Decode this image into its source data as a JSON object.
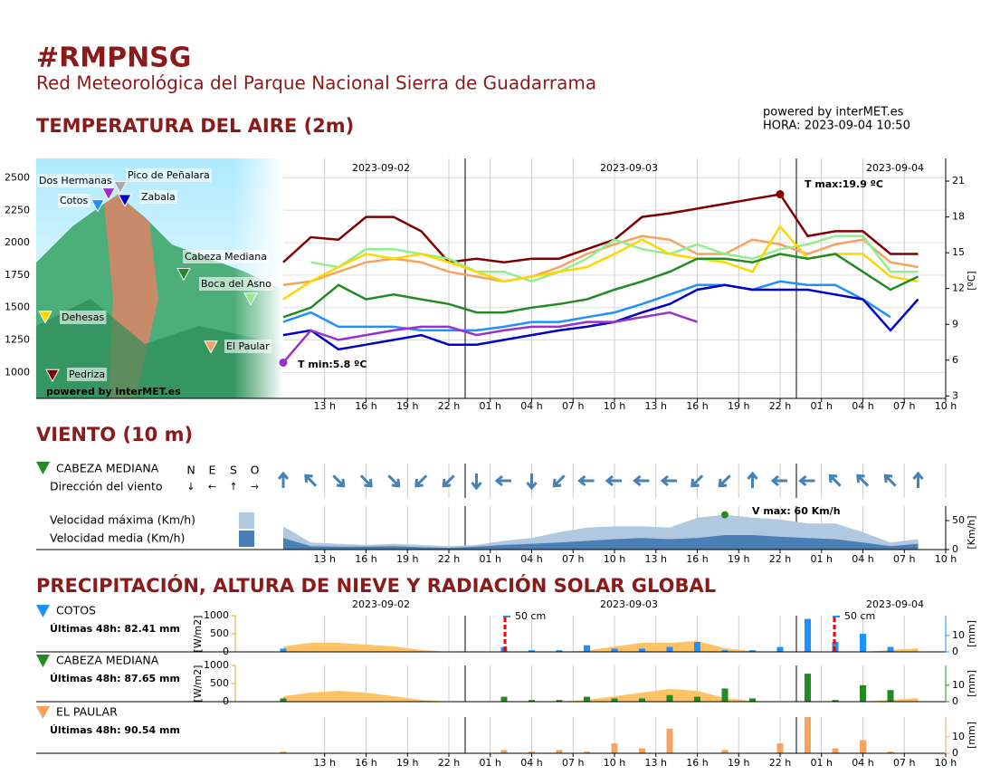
{
  "header": {
    "title": "#RMPNSG",
    "subtitle": "Red Meteorológica del Parque Nacional Sierra de Guadarrama",
    "powered": "powered by interMET.es",
    "hora": "HORA: 2023-09-04 10:50"
  },
  "time_axis": {
    "xlim": [
      10,
      58
    ],
    "dates": [
      "2023-09-02",
      "2023-09-03",
      "2023-09-04"
    ],
    "xticks": [
      {
        "value": 13,
        "label": "13 h"
      },
      {
        "value": 16,
        "label": "16 h"
      },
      {
        "value": 19,
        "label": "19 h"
      },
      {
        "value": 22,
        "label": "22 h"
      },
      {
        "value": 25,
        "label": "01 h"
      },
      {
        "value": 28,
        "label": "04 h"
      },
      {
        "value": 31,
        "label": "07 h"
      },
      {
        "value": 34,
        "label": "10 h"
      },
      {
        "value": 37,
        "label": "13 h"
      },
      {
        "value": 40,
        "label": "16 h"
      },
      {
        "value": 43,
        "label": "19 h"
      },
      {
        "value": 46,
        "label": "22 h"
      },
      {
        "value": 49,
        "label": "01 h"
      },
      {
        "value": 52,
        "label": "04 h"
      },
      {
        "value": 55,
        "label": "07 h"
      },
      {
        "value": 58,
        "label": "10 h"
      }
    ],
    "x": [
      10,
      12,
      14,
      16,
      18,
      20,
      22,
      24,
      26,
      28,
      30,
      32,
      34,
      36,
      38,
      40,
      42,
      44,
      46,
      48,
      50,
      52,
      54,
      56
    ]
  },
  "temperature": {
    "title": "TEMPERATURA DEL AIRE (2m)",
    "map_credit": "powered by interMET.es",
    "alt_ylim": [
      800,
      2650
    ],
    "alt_yticks": [
      1000,
      1250,
      1500,
      1750,
      2000,
      2250,
      2500
    ],
    "ylim": [
      2.8,
      22.9
    ],
    "yticks": [
      3,
      6,
      9,
      12,
      15,
      18,
      21
    ],
    "ylabel": "[ºC]",
    "tmax_label": "T max:19.9 ºC",
    "tmin_label": "T min:5.8 ºC",
    "stations": [
      {
        "name": "Pedriza",
        "color": "#800000",
        "altitude": 980,
        "temps": [
          14.2,
          16.3,
          16.1,
          18.0,
          18.0,
          16.8,
          14.2,
          14.5,
          14.2,
          14.5,
          14.5,
          15.3,
          16.1,
          18.0,
          18.3,
          18.7,
          19.1,
          19.5,
          19.9,
          16.4,
          16.8,
          16.8,
          14.9,
          14.9
        ]
      },
      {
        "name": "El Paular",
        "color": "#f4a460",
        "altitude": 1200,
        "temps": [
          12.3,
          12.6,
          13.4,
          14.2,
          14.5,
          14.2,
          13.4,
          13.0,
          12.6,
          13.0,
          13.8,
          14.9,
          15.7,
          16.4,
          16.1,
          14.9,
          14.9,
          16.1,
          15.7,
          14.9,
          15.7,
          16.1,
          14.2,
          13.8
        ]
      },
      {
        "name": "Boca del Asno",
        "color": "#90ee90",
        "altitude": 1570,
        "temps": [
          null,
          14.2,
          13.8,
          15.3,
          15.3,
          14.9,
          14.5,
          13.4,
          13.4,
          12.6,
          13.4,
          14.5,
          16.1,
          15.3,
          14.9,
          15.7,
          14.9,
          14.5,
          15.3,
          15.7,
          16.4,
          16.4,
          13.4,
          13.4
        ]
      },
      {
        "name": "Dehesas",
        "color": "#ffd700",
        "altitude": 1430,
        "temps": [
          11.1,
          12.6,
          13.8,
          14.9,
          14.5,
          14.9,
          14.2,
          13.4,
          12.6,
          13.0,
          13.4,
          13.8,
          14.9,
          16.1,
          14.9,
          14.5,
          14.2,
          13.4,
          17.2,
          14.5,
          14.9,
          14.9,
          13.0,
          12.6
        ]
      },
      {
        "name": "Cabeza Mediana",
        "color": "#228b22",
        "altitude": 1760,
        "temps": [
          9.6,
          10.4,
          12.3,
          11.1,
          11.5,
          11.1,
          10.7,
          10.0,
          10.0,
          10.4,
          10.7,
          11.1,
          11.9,
          12.6,
          13.4,
          14.5,
          14.5,
          14.2,
          14.9,
          14.5,
          14.9,
          13.4,
          11.9,
          13.0
        ]
      },
      {
        "name": "Cotos",
        "color": "#1e90ff",
        "altitude": 2290,
        "temps": [
          9.2,
          10.0,
          8.8,
          8.8,
          8.8,
          8.5,
          8.5,
          8.5,
          8.8,
          9.2,
          9.2,
          9.6,
          10.0,
          10.7,
          11.5,
          12.3,
          12.3,
          11.9,
          12.6,
          12.3,
          12.3,
          11.1,
          9.6,
          null
        ]
      },
      {
        "name": "Zabala",
        "color": "#0000cd",
        "altitude": 2330,
        "temps": [
          8.1,
          8.5,
          6.9,
          7.3,
          7.7,
          8.1,
          7.3,
          7.3,
          7.7,
          8.1,
          8.5,
          8.8,
          9.2,
          10.0,
          10.7,
          11.9,
          12.3,
          11.9,
          11.9,
          11.9,
          11.5,
          11.1,
          8.5,
          11.1
        ]
      },
      {
        "name": "Dos Hermanas",
        "color": "#9932cc",
        "altitude": 2380,
        "temps": [
          5.8,
          8.5,
          7.7,
          8.1,
          8.5,
          8.8,
          8.8,
          8.1,
          8.5,
          8.8,
          8.8,
          9.2,
          9.2,
          9.6,
          10.0,
          9.2,
          null,
          null,
          null,
          null,
          null,
          null,
          null,
          null
        ]
      },
      {
        "name": "Pico de Peñalara",
        "color": "#a9a9a9",
        "altitude": 2430
      }
    ]
  },
  "wind": {
    "title": "VIENTO (10 m)",
    "station": "CABEZA MEDIANA",
    "station_color": "#228b22",
    "dir_label": "Dirección del viento",
    "compass": [
      {
        "letter": "N",
        "arrow": "↓"
      },
      {
        "letter": "E",
        "arrow": "←"
      },
      {
        "letter": "S",
        "arrow": "↑"
      },
      {
        "letter": "O",
        "arrow": "→"
      }
    ],
    "arrow_color": "#4682b4",
    "directions": [
      180,
      135,
      315,
      315,
      315,
      45,
      45,
      0,
      90,
      0,
      45,
      90,
      90,
      90,
      90,
      45,
      45,
      180,
      90,
      90,
      135,
      135,
      135,
      180
    ],
    "max_label": "Velocidad máxima (Km/h)",
    "mean_label": "Velocidad media   (Km/h)",
    "max_color": "#b0c8e0",
    "mean_color": "#4a7fb5",
    "max": [
      40,
      12,
      10,
      8,
      10,
      8,
      6,
      8,
      15,
      20,
      30,
      38,
      40,
      40,
      38,
      55,
      60,
      55,
      52,
      45,
      45,
      30,
      12,
      18
    ],
    "mean": [
      20,
      6,
      5,
      5,
      6,
      4,
      3,
      5,
      8,
      10,
      12,
      15,
      18,
      20,
      18,
      20,
      25,
      25,
      22,
      20,
      18,
      12,
      6,
      10
    ],
    "ylim": [
      0,
      75
    ],
    "yticks": [
      0,
      50
    ],
    "ylabel": "[Km/h]",
    "vmax_label": "V max:  60 Km/h"
  },
  "precipitation": {
    "title": "PRECIPITACIÓN, ALTURA DE NIEVE Y RADIACIÓN SOLAR GLOBAL",
    "snow_label": "50 cm",
    "rad_ylim": [
      0,
      1000
    ],
    "rad_yticks": [
      0,
      500,
      1000
    ],
    "rad_label": "[W/m2]",
    "rad_color": "#ffc266",
    "ylim": [
      0,
      22
    ],
    "yticks": [
      0,
      10
    ],
    "ylabel": "[mm]",
    "panels": [
      {
        "name": "COTOS",
        "color": "#1e90ff",
        "total": "Últimas 48h: 82.41 mm",
        "radiation": [
          150,
          250,
          250,
          200,
          150,
          50,
          0,
          0,
          0,
          0,
          0,
          30,
          150,
          250,
          250,
          300,
          100,
          20,
          0,
          0,
          0,
          0,
          50,
          100
        ],
        "precip": [
          2,
          0,
          0,
          0,
          0,
          0,
          0,
          0,
          3,
          1,
          1,
          4,
          2,
          2,
          3,
          6,
          1,
          1,
          3,
          20,
          6,
          11,
          3,
          0
        ]
      },
      {
        "name": "CABEZA MEDIANA",
        "color": "#228b22",
        "total": "Últimas 48h: 87.65 mm",
        "radiation": [
          150,
          250,
          300,
          250,
          150,
          50,
          0,
          0,
          0,
          0,
          0,
          50,
          150,
          250,
          350,
          300,
          100,
          20,
          0,
          0,
          0,
          0,
          50,
          100
        ],
        "precip": [
          2,
          0,
          0,
          0,
          0,
          0,
          0,
          0,
          3,
          1,
          1,
          3,
          2,
          2,
          4,
          3,
          8,
          2,
          0,
          17,
          1,
          10,
          7,
          0
        ]
      },
      {
        "name": "EL PAULAR",
        "color": "#f4a460",
        "total": "Últimas 48h: 90.54 mm",
        "precip": [
          1,
          0,
          0,
          0,
          0,
          0,
          0,
          0,
          2,
          1,
          2,
          1,
          6,
          3,
          15,
          0,
          2,
          0,
          6,
          22,
          3,
          8,
          1,
          0
        ]
      }
    ]
  }
}
